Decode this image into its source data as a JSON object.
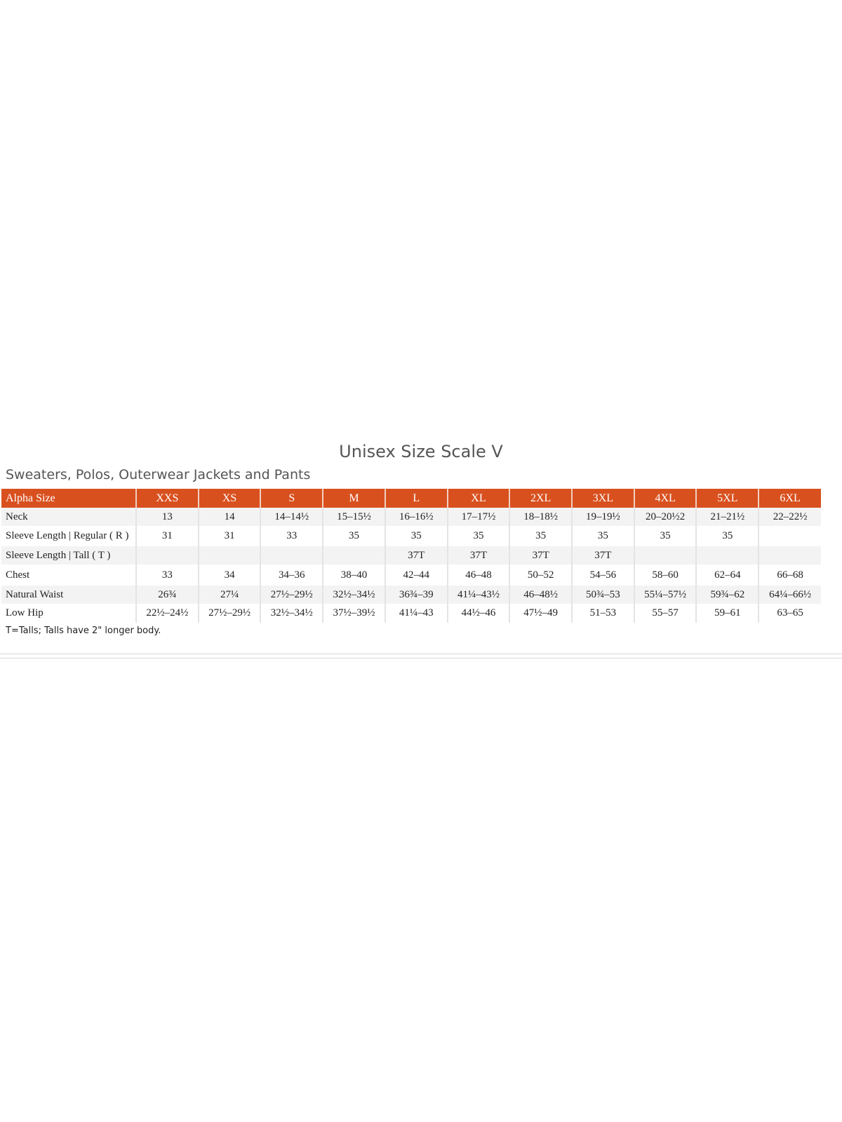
{
  "title": "Unisex Size Scale V",
  "subtitle": "Sweaters, Polos, Outerwear Jackets and Pants",
  "colors": {
    "header_bg": "#d9501f",
    "header_text": "#ffffff",
    "shade_row": "#f3f3f3"
  },
  "table": {
    "header": [
      "Alpha Size",
      "XXS",
      "XS",
      "S",
      "M",
      "L",
      "XL",
      "2XL",
      "3XL",
      "4XL",
      "5XL",
      "6XL"
    ],
    "rows": [
      [
        "Neck",
        "13",
        "14",
        "14–14½",
        "15–15½",
        "16–16½",
        "17–17½",
        "18–18½",
        "19–19½",
        "20–20½2",
        "21–21½",
        "22–22½"
      ],
      [
        "Sleeve Length | Regular ( R )",
        "31",
        "31",
        "33",
        "35",
        "35",
        "35",
        "35",
        "35",
        "35",
        "35",
        ""
      ],
      [
        "Sleeve Length | Tall ( T )",
        "",
        "",
        "",
        "",
        "37T",
        "37T",
        "37T",
        "37T",
        "",
        "",
        ""
      ],
      [
        "Chest",
        "33",
        "34",
        "34–36",
        "38–40",
        "42–44",
        "46–48",
        "50–52",
        "54–56",
        "58–60",
        "62–64",
        "66–68"
      ],
      [
        "Natural Waist",
        "26¾",
        "27¼",
        "27½–29½",
        "32½–34½",
        "36¾–39",
        "41¼–43½",
        "46–48½",
        "50¾–53",
        "55¼–57½",
        "59¾–62",
        "64¼–66½"
      ],
      [
        "Low Hip",
        "22½–24½",
        "27½–29½",
        "32½–34½",
        "37½–39½",
        "41¼–43",
        "44½–46",
        "47½–49",
        "51–53",
        "55–57",
        "59–61",
        "63–65"
      ]
    ]
  },
  "footnote": "T=Talls; Talls have 2\" longer body."
}
